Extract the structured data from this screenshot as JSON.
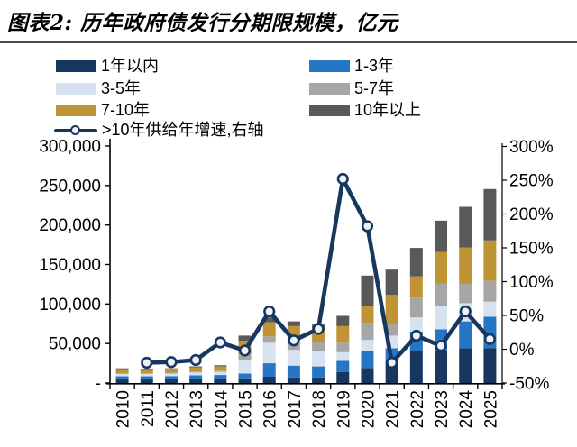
{
  "header": {
    "title": "图表2: 历年政府债发行分期限规模，亿元"
  },
  "chart_data": {
    "type": "bar",
    "subtype": "stacked-bar-with-line",
    "title": "历年政府债发行分期限规模",
    "unit": "亿元",
    "legend_position": "top",
    "grid": false,
    "categories": [
      "2010",
      "2011",
      "2012",
      "2013",
      "2014",
      "2015",
      "2016",
      "2017",
      "2018",
      "2019",
      "2020",
      "2021",
      "2022",
      "2023",
      "2024",
      "2025"
    ],
    "series": [
      {
        "name": "1年以内",
        "color": "#17375E",
        "values": [
          4500,
          4500,
          4600,
          5000,
          5200,
          6000,
          8000,
          7000,
          7000,
          14000,
          19000,
          28000,
          40000,
          40000,
          44000,
          44000
        ]
      },
      {
        "name": "1-3年",
        "color": "#2776C6",
        "values": [
          4000,
          4000,
          4200,
          4800,
          5000,
          6000,
          17000,
          15000,
          14000,
          14000,
          21000,
          16000,
          25000,
          28000,
          34000,
          40000
        ]
      },
      {
        "name": "3-5年",
        "color": "#D6E2F0",
        "values": [
          3000,
          3000,
          3200,
          3600,
          3900,
          17000,
          26000,
          20000,
          19000,
          11000,
          14500,
          16000,
          18000,
          30000,
          23000,
          19000
        ]
      },
      {
        "name": "5-7年",
        "color": "#A6A6A6",
        "values": [
          1000,
          1000,
          1100,
          1300,
          1500,
          8000,
          8000,
          12000,
          12000,
          12000,
          21500,
          14500,
          25000,
          28000,
          24500,
          26500
        ]
      },
      {
        "name": "7-10年",
        "color": "#BF9435",
        "values": [
          4000,
          4000,
          4100,
          5100,
          5600,
          16500,
          18000,
          18000,
          16000,
          21000,
          21000,
          37000,
          27000,
          40000,
          46000,
          51000
        ]
      },
      {
        "name": "10年以上",
        "color": "#595959",
        "values": [
          2100,
          1700,
          1400,
          1200,
          1300,
          6500,
          6000,
          6000,
          6000,
          13000,
          39000,
          32000,
          36000,
          39500,
          51500,
          65000
        ]
      }
    ],
    "line_series": {
      "label": ">10年供给年增速,右轴",
      "color": "#17375E",
      "marker_fill": "#eef3fa",
      "axis": "right",
      "values": [
        null,
        -20,
        -19,
        -16,
        10,
        -2,
        56,
        13,
        30,
        252,
        182,
        -20,
        20,
        5,
        56,
        15
      ]
    },
    "left_axis": {
      "min": 0,
      "max": 300000,
      "step": 50000,
      "zero_label": "-"
    },
    "right_axis": {
      "min": -50,
      "max": 300,
      "step": 50,
      "suffix": "%"
    }
  }
}
